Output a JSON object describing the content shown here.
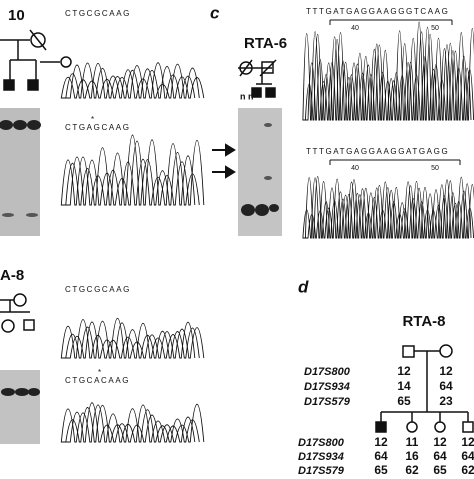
{
  "panel_a": {
    "label": "10",
    "sequence_wt": "CTGCGCAAG",
    "mutation_mark": "*",
    "sequence_mut": "CTGAGCAAG"
  },
  "panel_b": {
    "label": "A-8",
    "sequence_wt": "CTGCGCAAG",
    "mutation_mark": "*",
    "sequence_mut": "CTGCACAAG"
  },
  "panel_c": {
    "letter": "c",
    "family": "RTA-6",
    "genotypes": "n n",
    "sequence_top": "TTTGATGAGGAAGGGTCAAG",
    "positions_top": [
      "40",
      "50"
    ],
    "sequence_bottom": "TTTGATGAGGAAGGATGAGG",
    "positions_bottom": [
      "40",
      "50"
    ]
  },
  "panel_d": {
    "letter": "d",
    "family": "RTA-8",
    "parent_markers": [
      "D17S800",
      "D17S934",
      "D17S579"
    ],
    "parent_alleles": [
      [
        "12",
        "14",
        "65"
      ],
      [
        "12",
        "64",
        "23"
      ]
    ],
    "child_markers": [
      "D17S800",
      "D17S934",
      "D17S579"
    ],
    "child_alleles": [
      [
        "12",
        "64",
        "65"
      ],
      [
        "11",
        "16",
        "62"
      ],
      [
        "12",
        "64",
        "65"
      ],
      [
        "12",
        "64",
        "62"
      ]
    ]
  }
}
